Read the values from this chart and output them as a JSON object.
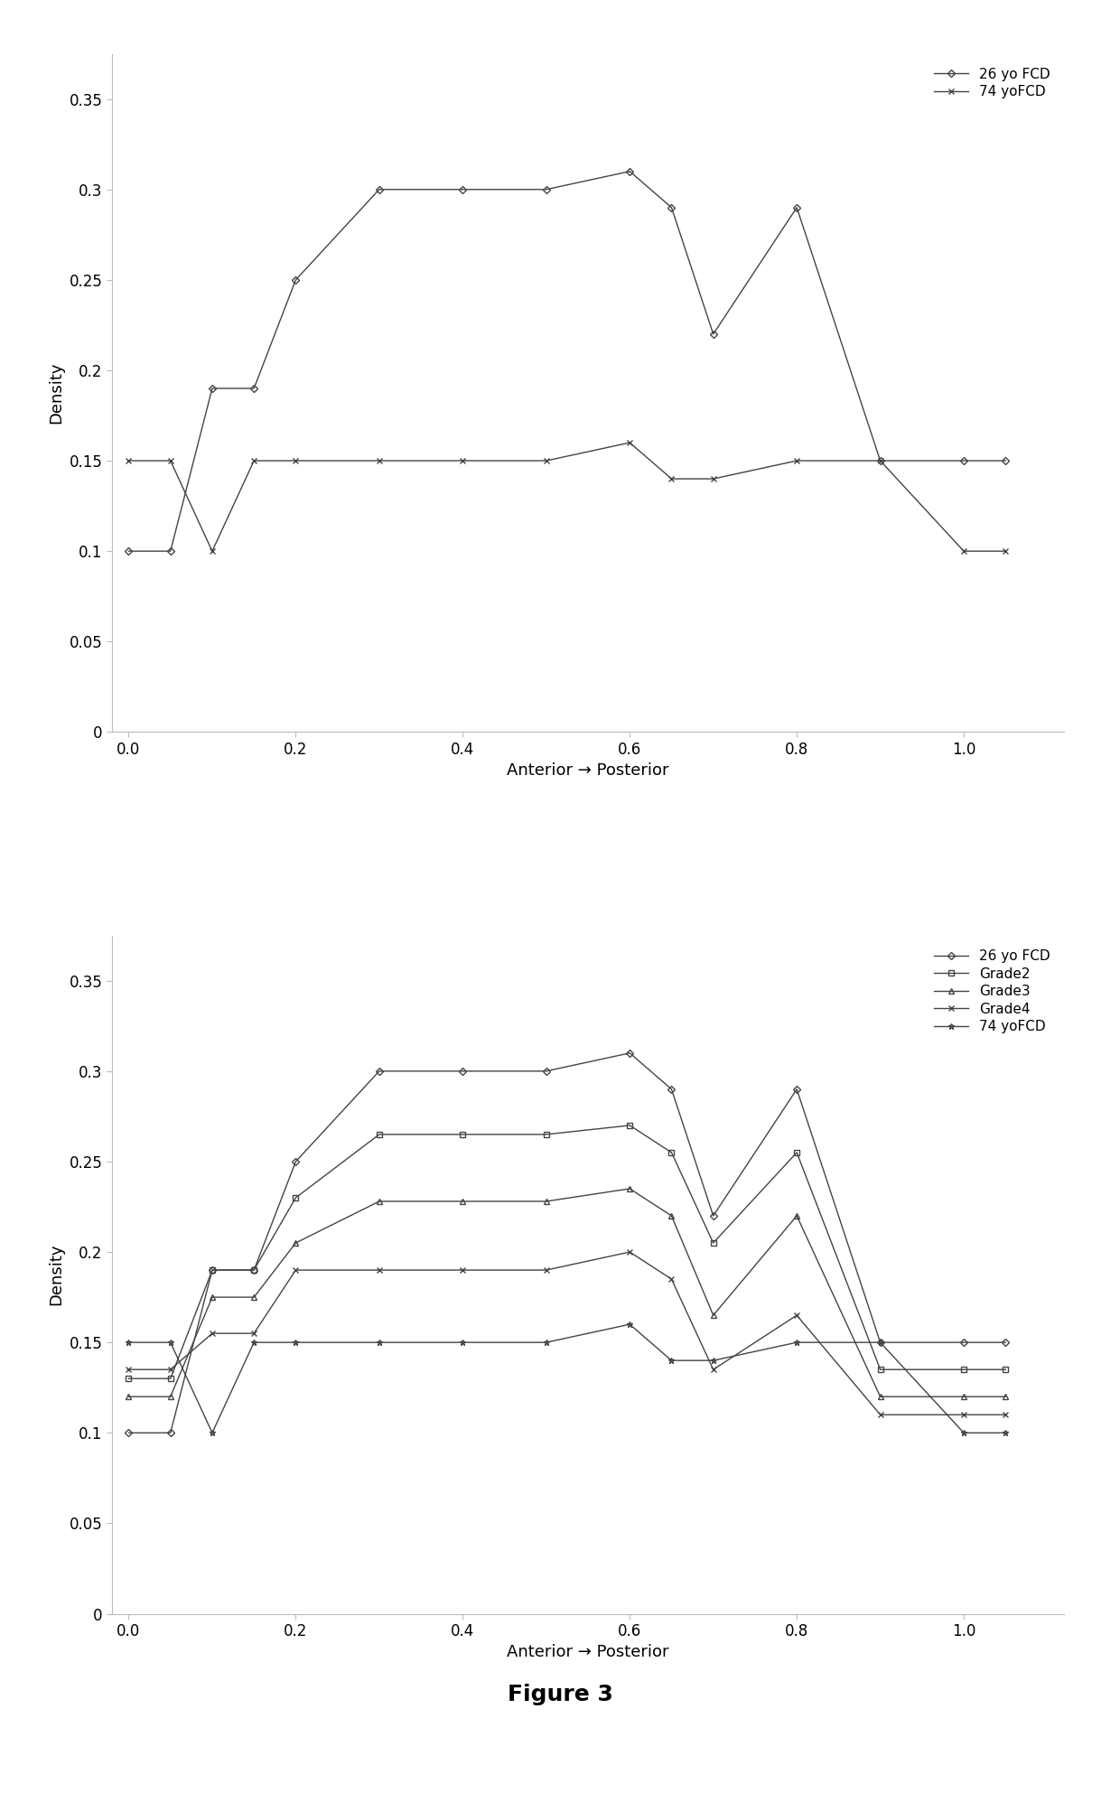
{
  "x": [
    0,
    0.05,
    0.1,
    0.15,
    0.2,
    0.3,
    0.4,
    0.5,
    0.6,
    0.65,
    0.7,
    0.8,
    0.9,
    1.0,
    1.05
  ],
  "plot1": {
    "series": [
      {
        "label": "26 yo FCD",
        "marker": "D",
        "color": "#444444",
        "markersize": 4,
        "y": [
          0.1,
          0.1,
          0.19,
          0.19,
          0.25,
          0.3,
          0.3,
          0.3,
          0.31,
          0.29,
          0.22,
          0.29,
          0.15,
          0.15,
          0.15
        ]
      },
      {
        "label": "74 yoFCD",
        "marker": "x",
        "color": "#444444",
        "markersize": 5,
        "y": [
          0.15,
          0.15,
          0.1,
          0.15,
          0.15,
          0.15,
          0.15,
          0.15,
          0.16,
          0.14,
          0.14,
          0.15,
          0.15,
          0.1,
          0.1
        ]
      }
    ],
    "ylabel": "Density",
    "xlabel": "Anterior → Posterior",
    "ylim": [
      0,
      0.375
    ],
    "xlim": [
      -0.02,
      1.12
    ],
    "yticks": [
      0,
      0.05,
      0.1,
      0.15,
      0.2,
      0.25,
      0.3,
      0.35
    ],
    "xticks": [
      0,
      0.2,
      0.4,
      0.6,
      0.8,
      1.0
    ]
  },
  "plot2": {
    "series": [
      {
        "label": "26 yo FCD",
        "marker": "D",
        "color": "#444444",
        "markersize": 4,
        "y": [
          0.1,
          0.1,
          0.19,
          0.19,
          0.25,
          0.3,
          0.3,
          0.3,
          0.31,
          0.29,
          0.22,
          0.29,
          0.15,
          0.15,
          0.15
        ]
      },
      {
        "label": "Grade2",
        "marker": "s",
        "color": "#444444",
        "markersize": 4,
        "y": [
          0.13,
          0.13,
          0.19,
          0.19,
          0.23,
          0.265,
          0.265,
          0.265,
          0.27,
          0.255,
          0.205,
          0.255,
          0.135,
          0.135,
          0.135
        ]
      },
      {
        "label": "Grade3",
        "marker": "^",
        "color": "#444444",
        "markersize": 4,
        "y": [
          0.12,
          0.12,
          0.175,
          0.175,
          0.205,
          0.228,
          0.228,
          0.228,
          0.235,
          0.22,
          0.165,
          0.22,
          0.12,
          0.12,
          0.12
        ]
      },
      {
        "label": "Grade4",
        "marker": "x",
        "color": "#444444",
        "markersize": 5,
        "y": [
          0.135,
          0.135,
          0.155,
          0.155,
          0.19,
          0.19,
          0.19,
          0.19,
          0.2,
          0.185,
          0.135,
          0.165,
          0.11,
          0.11,
          0.11
        ]
      },
      {
        "label": "74 yoFCD",
        "marker": "*",
        "color": "#444444",
        "markersize": 5,
        "y": [
          0.15,
          0.15,
          0.1,
          0.15,
          0.15,
          0.15,
          0.15,
          0.15,
          0.16,
          0.14,
          0.14,
          0.15,
          0.15,
          0.1,
          0.1
        ]
      }
    ],
    "ylabel": "Density",
    "xlabel": "Anterior → Posterior",
    "ylim": [
      0,
      0.375
    ],
    "xlim": [
      -0.02,
      1.12
    ],
    "yticks": [
      0,
      0.05,
      0.1,
      0.15,
      0.2,
      0.25,
      0.3,
      0.35
    ],
    "xticks": [
      0,
      0.2,
      0.4,
      0.6,
      0.8,
      1.0
    ]
  },
  "figure_label": "Figure 3",
  "figure_label_fontsize": 18,
  "axis_fontsize": 13,
  "tick_fontsize": 12,
  "legend_fontsize": 11,
  "linewidth": 1.0,
  "background_color": "#ffffff"
}
